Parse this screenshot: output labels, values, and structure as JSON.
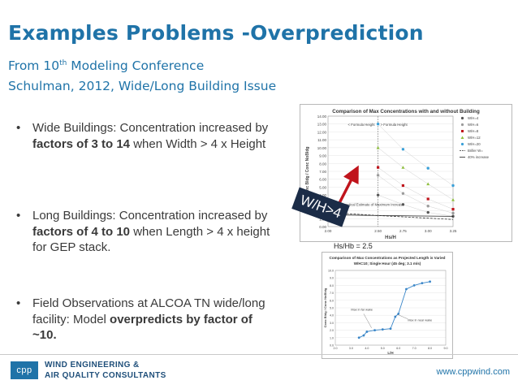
{
  "slide": {
    "title": "Examples Problems -Overprediction",
    "subtitle_line1_pre": "From 10",
    "subtitle_line1_sup": "th",
    "subtitle_line1_post": " Modeling Conference",
    "subtitle_line2": "Schulman, 2012, Wide/Long Building Issue"
  },
  "bullets": [
    {
      "pre": "Wide Buildings:  Concentration increased by ",
      "bold": "factors of 3 to 14",
      "post": " when Width > 4 x Height"
    },
    {
      "pre": "Long Buildings: Concentration increased by ",
      "bold": "factors of 4 to 10",
      "post": " when Length  > 4 x height for GEP stack."
    },
    {
      "pre": "Field Observations at ALCOA TN wide/long facility:  Model ",
      "bold": "overpredicts by factor of ~10.",
      "post": ""
    }
  ],
  "bullet_symbol": "•",
  "annotations": {
    "wh_tag": "W/H>4",
    "hs_hb": "Hs/Hb = 2.5"
  },
  "colors": {
    "title_blue": "#1f73a8",
    "tag_navy": "#1b2c47",
    "arrow_red": "#c0141c"
  },
  "chart_data": [
    {
      "type": "scatter",
      "title": "Comparison of Max Concentrations with and without Building",
      "xlabel": "Hs/H",
      "ylabel": "Conc Bldg / Conc NoBldg",
      "ylim": [
        0,
        14
      ],
      "yticks": [
        "14.00",
        "13.00",
        "12.00",
        "11.00",
        "10.00",
        "9.00",
        "8.00",
        "7.00",
        "6.00",
        "5.00",
        "4.00",
        "3.00",
        "2.00",
        "1.00",
        "0.00"
      ],
      "xticks": [
        "2.00",
        "2.50",
        "2.75",
        "3.00",
        "3.25"
      ],
      "annotations": [
        "< Formula Height",
        "> Formula Height",
        "Theoretical Estimate of Maximum Increase"
      ],
      "series": [
        {
          "name": "W/H=4",
          "color": "#555555",
          "marker": "circle",
          "x": [
            2.5,
            2.75,
            3.0,
            3.25
          ],
          "y": [
            4.0,
            2.8,
            1.8,
            1.3
          ]
        },
        {
          "name": "W/H=6",
          "color": "#9b9b9b",
          "marker": "circle",
          "x": [
            2.5,
            2.75,
            3.0,
            3.25
          ],
          "y": [
            6.5,
            4.2,
            2.6,
            1.7
          ]
        },
        {
          "name": "W/H=8",
          "color": "#c0141c",
          "marker": "square",
          "x": [
            2.5,
            2.75,
            3.0,
            3.25
          ],
          "y": [
            7.5,
            5.2,
            3.5,
            2.2
          ]
        },
        {
          "name": "W/H=12",
          "color": "#8fbf3f",
          "marker": "triangle",
          "x": [
            2.5,
            2.75,
            3.0,
            3.25
          ],
          "y": [
            10.0,
            7.5,
            5.4,
            3.4
          ]
        },
        {
          "name": "W/H=20",
          "color": "#3aa0d8",
          "marker": "circle",
          "x": [
            2.5,
            2.75,
            3.0,
            3.25
          ],
          "y": [
            13.0,
            9.8,
            7.4,
            5.2
          ]
        },
        {
          "name": "Briller W=  ",
          "color": "#333333",
          "marker": "dash",
          "x": [
            2.0,
            2.5,
            3.25
          ],
          "y": [
            1.8,
            1.4,
            0.9
          ]
        },
        {
          "name": "40% increase",
          "color": "#222222",
          "marker": "line",
          "x": [
            2.0,
            2.5,
            3.25
          ],
          "y": [
            1.5,
            1.4,
            1.3
          ]
        }
      ]
    },
    {
      "type": "line",
      "title": "Comparison of Max Concentrations as Projected Length is Varied",
      "subtitle": "W/H=10; Single Hour (45 deg; 3.1 m/s)",
      "xlabel": "L/H",
      "ylabel": "Conc Bldg / Conc NoBldg",
      "ylim": [
        0,
        10
      ],
      "yticks": [
        "10.0",
        "9.0",
        "8.0",
        "7.0",
        "6.0",
        "5.0",
        "4.0",
        "3.0",
        "2.0",
        "1.0",
        "0.0"
      ],
      "xticks": [
        "2.0",
        "3.0",
        "4.0",
        "5.0",
        "6.0",
        "7.0",
        "8.0",
        "9.0"
      ],
      "annotations": [
        "Max in far wake",
        "Max in near wake"
      ],
      "x": [
        3.5,
        3.8,
        4.0,
        4.5,
        5.0,
        5.5,
        5.8,
        6.0,
        6.5,
        7.0,
        7.5,
        8.0
      ],
      "y": [
        1.0,
        1.3,
        1.8,
        2.0,
        2.1,
        2.2,
        3.8,
        4.2,
        7.5,
        8.0,
        8.3,
        8.5
      ]
    }
  ],
  "footer": {
    "logo_text": "cpp",
    "company_line1": "WIND ENGINEERING &",
    "company_line2": "AIR QUALITY CONSULTANTS",
    "url": "www.cppwind.com"
  }
}
